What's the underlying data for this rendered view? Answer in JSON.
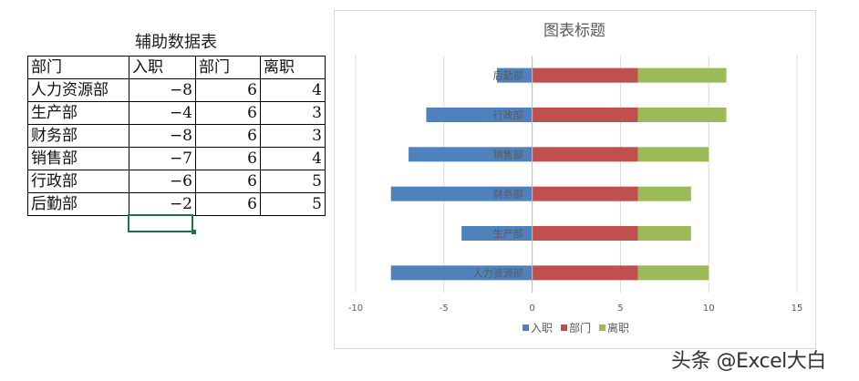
{
  "table": {
    "title": "辅助数据表",
    "headers": [
      "部门",
      "入职",
      "部门",
      "离职"
    ],
    "rows": [
      [
        "人力资源部",
        "-8",
        "6",
        "4"
      ],
      [
        "生产部",
        "-4",
        "6",
        "3"
      ],
      [
        "财务部",
        "-8",
        "6",
        "3"
      ],
      [
        "销售部",
        "-7",
        "6",
        "4"
      ],
      [
        "行政部",
        "-6",
        "6",
        "5"
      ],
      [
        "后勤部",
        "-2",
        "6",
        "5"
      ]
    ]
  },
  "chart_data": {
    "type": "bar",
    "orientation": "horizontal",
    "stacked": true,
    "title": "图表标题",
    "categories": [
      "人力资源部",
      "生产部",
      "财务部",
      "销售部",
      "行政部",
      "后勤部"
    ],
    "series": [
      {
        "name": "入职",
        "values": [
          -8,
          -4,
          -8,
          -7,
          -6,
          -2
        ],
        "color": "#4f81bd"
      },
      {
        "name": "部门",
        "values": [
          6,
          6,
          6,
          6,
          6,
          6
        ],
        "color": "#c0504d"
      },
      {
        "name": "离职",
        "values": [
          4,
          3,
          3,
          4,
          5,
          5
        ],
        "color": "#9bbb59"
      }
    ],
    "xlim": [
      -10,
      15
    ],
    "xticks": [
      -10,
      -5,
      0,
      5,
      10,
      15
    ],
    "grid": "vertical",
    "legend": "bottom",
    "category_labels_at": "zero-axis"
  },
  "watermark": "头条 @Excel大白"
}
